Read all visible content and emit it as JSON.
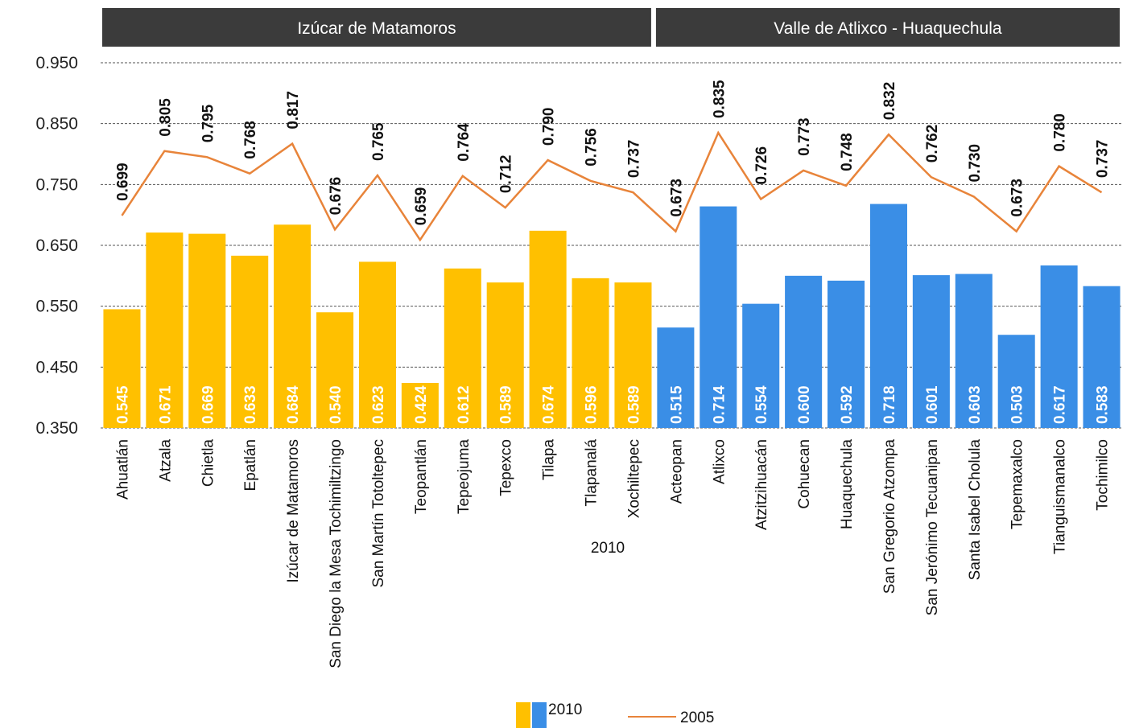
{
  "chart_data": {
    "type": "bar_line",
    "x_label": "2010",
    "groups": [
      {
        "name": "Izúcar de Matamoros",
        "span": 13,
        "color": "#FFC000"
      },
      {
        "name": "Valle de Atlixco - Huaquechula",
        "span": 11,
        "color": "#3A8EE6"
      }
    ],
    "categories": [
      "Ahuatlán",
      "Atzala",
      "Chietla",
      "Epatlán",
      "Izúcar de Matamoros",
      "San Diego la Mesa Tochimiltzingo",
      "San Martín Totoltepec",
      "Teopantlán",
      "Tepeojuma",
      "Tepexco",
      "Tilapa",
      "Tlapanalá",
      "Xochiltepec",
      "Acteopan",
      "Atlixco",
      "Atzitzihuacán",
      "Cohuecan",
      "Huaquechula",
      "San Gregorio Atzompa",
      "San Jerónimo Tecuanipan",
      "Santa Isabel Cholula",
      "Tepemaxalco",
      "Tianguismanalco",
      "Tochimilco"
    ],
    "series": [
      {
        "name": "2010",
        "type": "bar",
        "values": [
          0.545,
          0.671,
          0.669,
          0.633,
          0.684,
          0.54,
          0.623,
          0.424,
          0.612,
          0.589,
          0.674,
          0.596,
          0.589,
          0.515,
          0.714,
          0.554,
          0.6,
          0.592,
          0.718,
          0.601,
          0.603,
          0.503,
          0.617,
          0.583
        ],
        "value_labels": [
          "0.545",
          "0.671",
          "0.669",
          "0.633",
          "0.684",
          "0.540",
          "0.623",
          "0.424",
          "0.612",
          "0.589",
          "0.674",
          "0.596",
          "0.589",
          "0.515",
          "0.714",
          "0.554",
          "0.600",
          "0.592",
          "0.718",
          "0.601",
          "0.603",
          "0.503",
          "0.617",
          "0.583"
        ]
      },
      {
        "name": "2005",
        "type": "line",
        "color": "#E8843A",
        "values": [
          0.699,
          0.805,
          0.795,
          0.768,
          0.817,
          0.676,
          0.765,
          0.659,
          0.764,
          0.712,
          0.79,
          0.756,
          0.737,
          0.673,
          0.835,
          0.726,
          0.773,
          0.748,
          0.832,
          0.762,
          0.73,
          0.673,
          0.78,
          0.737
        ],
        "value_labels": [
          "0.699",
          "0.805",
          "0.795",
          "0.768",
          "0.817",
          "0.676",
          "0.765",
          "0.659",
          "0.764",
          "0.712",
          "0.790",
          "0.756",
          "0.737",
          "0.673",
          "0.835",
          "0.726",
          "0.773",
          "0.748",
          "0.832",
          "0.762",
          "0.730",
          "0.673",
          "0.780",
          "0.737"
        ]
      }
    ],
    "ylim": [
      0.35,
      0.95
    ],
    "yticks": [
      {
        "value": 0.35,
        "label": "0.350"
      },
      {
        "value": 0.45,
        "label": "0.450"
      },
      {
        "value": 0.55,
        "label": "0.550"
      },
      {
        "value": 0.65,
        "label": "0.650"
      },
      {
        "value": 0.75,
        "label": "0.750"
      },
      {
        "value": 0.85,
        "label": "0.850"
      },
      {
        "value": 0.95,
        "label": "0.950"
      }
    ],
    "grid": true
  }
}
